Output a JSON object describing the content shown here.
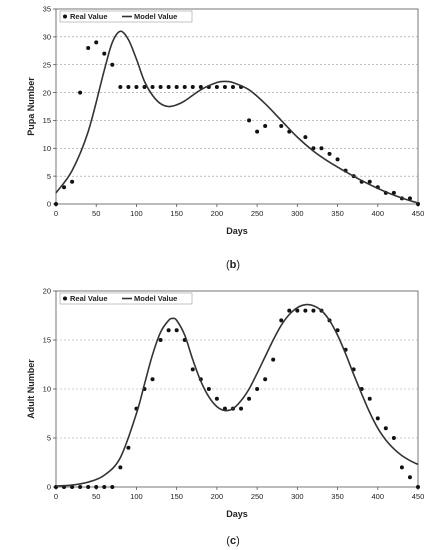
{
  "chart_data": [
    {
      "type": "scatter",
      "panel": "(b)",
      "caption_letter": "b",
      "xlabel": "Days",
      "ylabel": "Pupa Number",
      "xlim": [
        0,
        450
      ],
      "ylim": [
        0,
        35
      ],
      "x_ticks": [
        0,
        50,
        100,
        150,
        200,
        250,
        300,
        350,
        400,
        450
      ],
      "y_ticks": [
        0,
        5,
        10,
        15,
        20,
        25,
        30,
        35
      ],
      "grid": "horizontal",
      "legend_position": "top-left",
      "series": [
        {
          "name": "Real Value",
          "style": "points",
          "x": [
            0,
            10,
            20,
            30,
            40,
            50,
            60,
            70,
            80,
            90,
            100,
            110,
            120,
            130,
            140,
            150,
            160,
            170,
            180,
            190,
            200,
            210,
            220,
            230,
            240,
            250,
            260,
            280,
            290,
            310,
            320,
            330,
            340,
            350,
            360,
            370,
            380,
            390,
            400,
            410,
            420,
            430,
            440,
            450
          ],
          "y": [
            0,
            3,
            4,
            20,
            28,
            29,
            27,
            25,
            21,
            21,
            21,
            21,
            21,
            21,
            21,
            21,
            21,
            21,
            21,
            21,
            21,
            21,
            21,
            21,
            15,
            13,
            14,
            14,
            13,
            12,
            10,
            10,
            9,
            8,
            6,
            5,
            4,
            4,
            3,
            2,
            2,
            1,
            1,
            0
          ]
        },
        {
          "name": "Model Value",
          "style": "line",
          "x": [
            0,
            20,
            40,
            60,
            70,
            80,
            90,
            100,
            110,
            120,
            130,
            140,
            150,
            160,
            180,
            200,
            210,
            220,
            240,
            260,
            280,
            300,
            320,
            340,
            360,
            380,
            400,
            420,
            440,
            450
          ],
          "y": [
            2,
            6,
            13,
            24,
            29,
            31,
            29.5,
            26,
            22,
            19.5,
            18,
            17.5,
            17.8,
            18.5,
            20.5,
            21.8,
            22,
            21.8,
            20.5,
            18,
            15,
            12,
            9.5,
            7.5,
            5.8,
            4.2,
            2.8,
            1.6,
            0.6,
            0.2
          ]
        }
      ]
    },
    {
      "type": "scatter",
      "panel": "(c)",
      "caption_letter": "c",
      "xlabel": "Days",
      "ylabel": "Adult Number",
      "xlim": [
        0,
        450
      ],
      "ylim": [
        0,
        20
      ],
      "x_ticks": [
        0,
        50,
        100,
        150,
        200,
        250,
        300,
        350,
        400,
        450
      ],
      "y_ticks": [
        0,
        5,
        10,
        15,
        20
      ],
      "grid": "horizontal",
      "legend_position": "top-left",
      "series": [
        {
          "name": "Real Value",
          "style": "points",
          "x": [
            0,
            10,
            20,
            30,
            40,
            50,
            60,
            70,
            80,
            90,
            100,
            110,
            120,
            130,
            140,
            150,
            160,
            170,
            180,
            190,
            200,
            210,
            220,
            230,
            240,
            250,
            260,
            270,
            280,
            290,
            300,
            310,
            320,
            330,
            340,
            350,
            360,
            370,
            380,
            390,
            400,
            410,
            420,
            430,
            440,
            450
          ],
          "y": [
            0,
            0,
            0,
            0,
            0,
            0,
            0,
            0,
            2,
            4,
            8,
            10,
            11,
            15,
            16,
            16,
            15,
            12,
            11,
            10,
            9,
            8,
            8,
            8,
            9,
            10,
            11,
            13,
            17,
            18,
            18,
            18,
            18,
            18,
            17,
            16,
            14,
            12,
            10,
            9,
            7,
            6,
            5,
            2,
            1,
            0
          ]
        },
        {
          "name": "Model Value",
          "style": "line",
          "x": [
            0,
            20,
            40,
            60,
            80,
            100,
            110,
            120,
            130,
            140,
            145,
            150,
            160,
            170,
            180,
            190,
            200,
            210,
            220,
            230,
            240,
            250,
            260,
            270,
            280,
            290,
            300,
            310,
            320,
            330,
            340,
            350,
            360,
            370,
            380,
            390,
            400,
            410,
            420,
            430,
            440,
            450
          ],
          "y": [
            0.1,
            0.2,
            0.5,
            1.2,
            3,
            7.5,
            10.5,
            13.5,
            15.8,
            17,
            17.2,
            17,
            15.5,
            13,
            10.8,
            9.2,
            8.2,
            7.8,
            8,
            8.8,
            10,
            11.6,
            13.3,
            15,
            16.5,
            17.6,
            18.3,
            18.6,
            18.5,
            18,
            17,
            15.5,
            13.6,
            11.5,
            9.5,
            7.6,
            6,
            4.8,
            3.9,
            3.2,
            2.7,
            2.3
          ]
        }
      ]
    }
  ]
}
